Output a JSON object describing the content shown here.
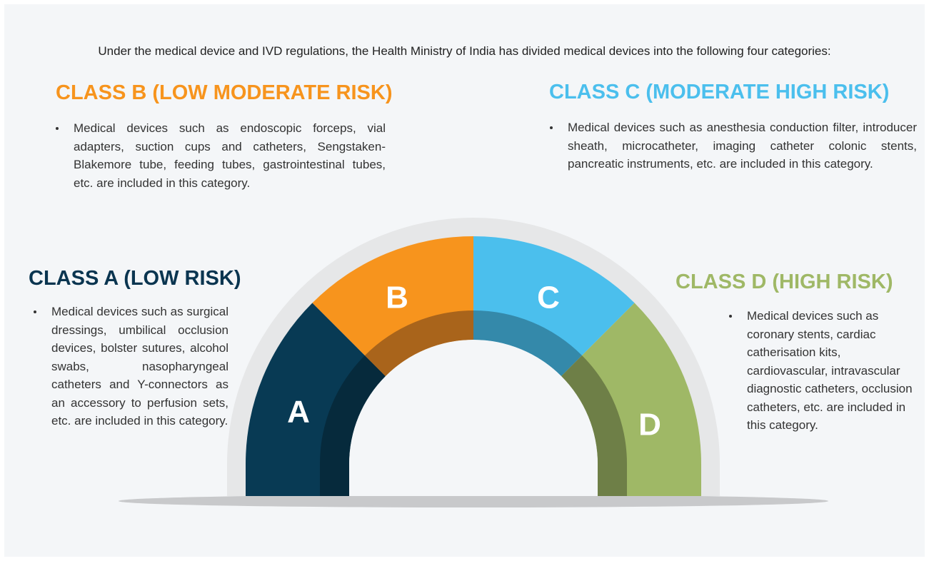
{
  "intro": "Under the medical device and IVD regulations, the Health Ministry of India has divided medical devices into the following four categories:",
  "classes": [
    {
      "title": "CLASS A (LOW RISK)",
      "letter": "A",
      "description": "Medical devices such as surgical dressings, umbilical occlusion devices, bolster sutures, alcohol swabs, nasopharyngeal catheters and Y-connectors as an accessory to perfusion sets, etc. are included in this category."
    },
    {
      "title": "CLASS B (LOW MODERATE RISK)",
      "letter": "B",
      "description": "Medical devices such as endoscopic forceps, vial adapters, suction cups and catheters, Sengstaken-Blakemore tube, feeding tubes, gastrointestinal tubes, etc. are included in this category."
    },
    {
      "title": "CLASS C (MODERATE HIGH RISK)",
      "letter": "C",
      "description": "Medical devices such as anesthesia conduction filter, introducer sheath, microcatheter, imaging catheter colonic stents, pancreatic instruments, etc. are included in this category."
    },
    {
      "title": "CLASS D (HIGH RISK)",
      "letter": "D",
      "description": "Medical devices such as coronary stents, cardiac catherisation kits, cardiovascular, intravascular diagnostic catheters, occlusion catheters, etc. are included in this category."
    }
  ]
}
